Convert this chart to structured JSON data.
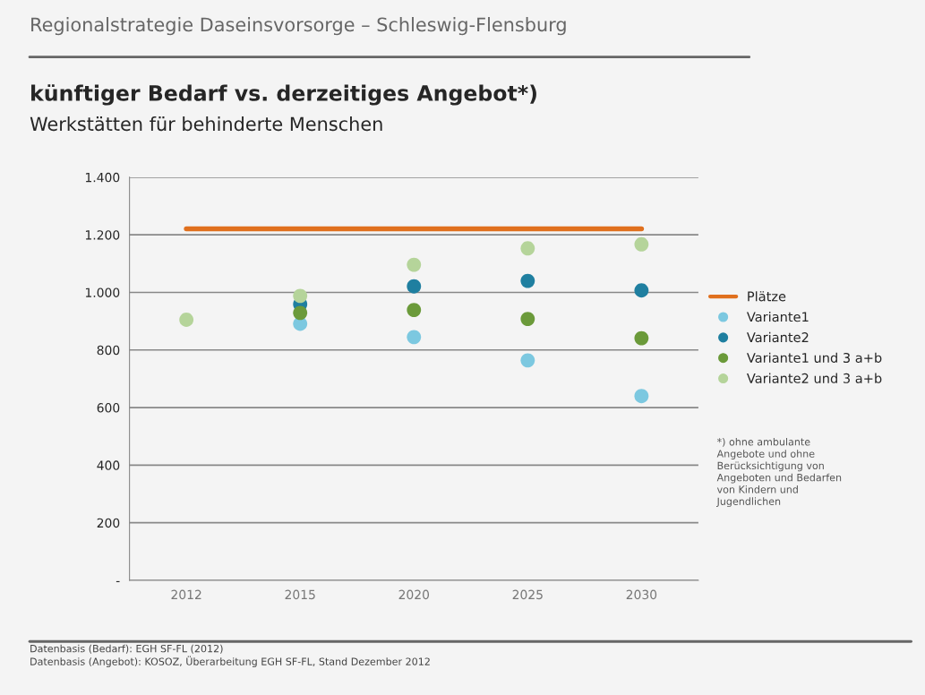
{
  "chart_data": {
    "type": "scatter",
    "title": "künftiger Bedarf vs. derzeitiges Angebot*)",
    "subtitle": "Werkstätten für behinderte Menschen",
    "categories": [
      "2012",
      "2015",
      "2020",
      "2025",
      "2030"
    ],
    "series": [
      {
        "name": "Plätze",
        "type": "line",
        "marker": "none",
        "color": "#e0701e",
        "values": [
          1221,
          1221,
          1221,
          1221,
          1221
        ]
      },
      {
        "name": "Variante1",
        "color": "#7cc8e0",
        "values": [
          null,
          891,
          845,
          764,
          640
        ]
      },
      {
        "name": "Variante2",
        "color": "#1f7fa0",
        "values": [
          null,
          959,
          1021,
          1040,
          1007
        ]
      },
      {
        "name": "Variante1 und 3 a+b",
        "color": "#6b9a3a",
        "values": [
          null,
          929,
          939,
          908,
          841
        ]
      },
      {
        "name": "Variante2 und 3 a+b",
        "color": "#b5d49a",
        "values": [
          905,
          988,
          1096,
          1153,
          1167
        ]
      }
    ],
    "ylim": [
      0,
      1400
    ],
    "yticks": [
      {
        "value": 0,
        "label": "-"
      },
      {
        "value": 200,
        "label": "200"
      },
      {
        "value": 400,
        "label": "400"
      },
      {
        "value": 600,
        "label": "600"
      },
      {
        "value": 800,
        "label": "800"
      },
      {
        "value": 1000,
        "label": "1.000"
      },
      {
        "value": 1200,
        "label": "1.200"
      },
      {
        "value": 1400,
        "label": "1.400"
      }
    ],
    "grid": "y",
    "legend": "right",
    "marker": "circle",
    "annotations": [
      "Regionalstrategie Daseinsvorsorge – Schleswig-Flensburg",
      "*) ohne ambulante\nAngebote und ohne\nBerücksichtigung von\nAngeboten und Bedarfen\nvon Kindern und\nJugendlichen",
      "Datenbasis (Bedarf): EGH SF-FL (2012)\nDatenbasis (Angebot): KOSOZ, Überarbeitung EGH SF-FL, Stand Dezember 2012"
    ]
  }
}
